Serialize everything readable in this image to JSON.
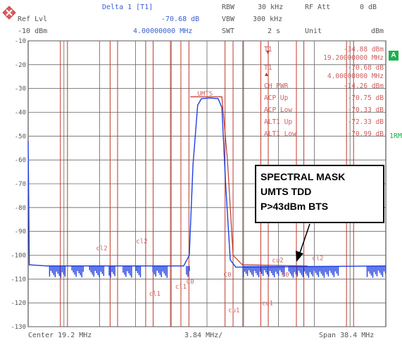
{
  "header": {
    "logo_icon": "rohde-schwarz-diamond-icon",
    "ref_lvl_label": "Ref Lvl",
    "ref_lvl_value": "-10 dBm",
    "marker_title": "Delta 1 [T1]",
    "marker_level": "-70.68 dB",
    "marker_freq": "4.00000000 MHz",
    "rbw_label": "RBW",
    "rbw_value": "30 kHz",
    "vbw_label": "VBW",
    "vbw_value": "300 kHz",
    "swt_label": "SWT",
    "swt_value": "2 s",
    "rf_att_label": "RF Att",
    "rf_att_value": "0 dB",
    "unit_label": "Unit",
    "unit_value": "dBm"
  },
  "side": {
    "trace_badge": "A",
    "side_label": "1RM"
  },
  "callout": {
    "line1": "SPECTRAL MASK",
    "line2": "UMTS TDD",
    "line3": "P>43dBm BTS"
  },
  "markers_table": [
    {
      "label": "T1",
      "value": "-34.88 dBm",
      "freq": "19.20000000 MHz"
    },
    {
      "label": "T1",
      "value": "-70.68 dB",
      "freq": "4.00000000 MHz"
    },
    {
      "label": "CH PWR",
      "value": "-14.26 dBm"
    },
    {
      "label": "ACP Up",
      "value": "-70.75 dB"
    },
    {
      "label": "ACP Low",
      "value": "-70.33 dB"
    },
    {
      "label": "ALT1 Up",
      "value": "-72.33 dB"
    },
    {
      "label": "ALT1 Low",
      "value": "-70.99 dB"
    }
  ],
  "footer": {
    "center": "Center 19.2 MHz",
    "div": "3.84 MHz/",
    "span": "Span 38.4 MHz"
  },
  "chart_data": {
    "type": "line",
    "xlim": [
      0,
      38.4
    ],
    "ylim": [
      -130,
      -10
    ],
    "y_ticks": [
      -10,
      -20,
      -30,
      -40,
      -50,
      -60,
      -70,
      -80,
      -90,
      -100,
      -110,
      -120,
      -130
    ],
    "grid": true,
    "colors": {
      "trace": "#1f3fe0",
      "limit": "#c0392b",
      "grid": "#666666",
      "text": "#d06060"
    },
    "channel_labels": [
      {
        "text": "UMTS",
        "x": 19.0,
        "y": -33
      },
      {
        "text": "cl2",
        "x": 7.9,
        "y": -98
      },
      {
        "text": "cl2",
        "x": 12.2,
        "y": -95
      },
      {
        "text": "cl2",
        "x": 31.1,
        "y": -102
      },
      {
        "text": "cl1",
        "x": 13.6,
        "y": -117
      },
      {
        "text": "cl1",
        "x": 16.4,
        "y": -114
      },
      {
        "text": "C0",
        "x": 17.4,
        "y": -112
      },
      {
        "text": "C0",
        "x": 21.4,
        "y": -109
      },
      {
        "text": "C0",
        "x": 27.6,
        "y": -109
      },
      {
        "text": "cu1",
        "x": 22.1,
        "y": -124
      },
      {
        "text": "cu1",
        "x": 25.7,
        "y": -121
      },
      {
        "text": "cu2",
        "x": 26.8,
        "y": -103
      }
    ],
    "vertical_lines": [
      3.46,
      4.22,
      8.8,
      9.6,
      12.62,
      13.42,
      15.28,
      16.4,
      17.26,
      21.14,
      22.0,
      23.12,
      24.98,
      25.78,
      28.8,
      29.6,
      34.18,
      34.94
    ],
    "limit_line": [
      [
        17.4,
        -33.5
      ],
      [
        20.8,
        -33.5
      ],
      [
        21.4,
        -60
      ],
      [
        22.0,
        -100
      ],
      [
        23.0,
        -104
      ],
      [
        30.0,
        -104.5
      ]
    ],
    "trace": [
      [
        0.0,
        -52
      ],
      [
        0.12,
        -104
      ],
      [
        2.0,
        -104.5
      ],
      [
        16.7,
        -104.5
      ],
      [
        17.3,
        -100
      ],
      [
        17.7,
        -62
      ],
      [
        18.2,
        -37
      ],
      [
        18.6,
        -34.3
      ],
      [
        19.5,
        -34
      ],
      [
        20.4,
        -34.3
      ],
      [
        20.8,
        -38
      ],
      [
        21.2,
        -70
      ],
      [
        21.7,
        -102
      ],
      [
        22.3,
        -105
      ],
      [
        38.4,
        -104.5
      ]
    ],
    "noise_clusters": [
      [
        2.3,
        4.1
      ],
      [
        4.7,
        6.0
      ],
      [
        6.6,
        8.2
      ],
      [
        8.7,
        9.4
      ],
      [
        10.2,
        11.2
      ],
      [
        11.6,
        12.2
      ],
      [
        13.4,
        15.0
      ],
      [
        17.0,
        17.4
      ],
      [
        23.1,
        27.6
      ],
      [
        28.0,
        33.4
      ],
      [
        36.4,
        38.4
      ]
    ]
  }
}
